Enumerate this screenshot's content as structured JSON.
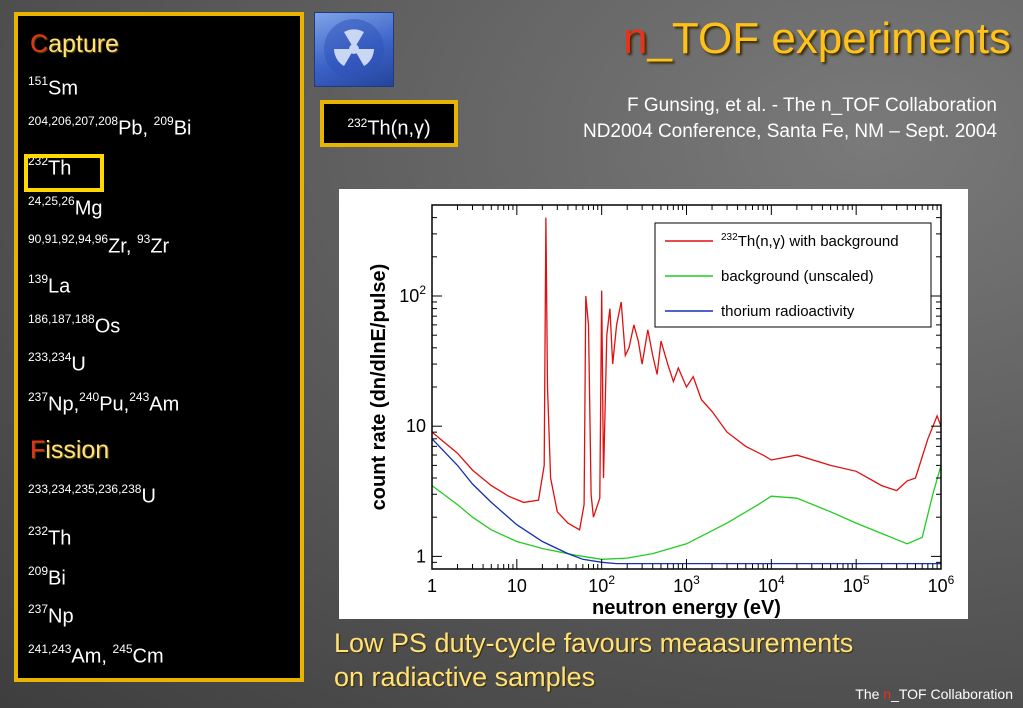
{
  "left_panel": {
    "capture_heading_first": "C",
    "capture_heading_rest": "apture",
    "capture_items": [
      {
        "sup": "151",
        "el": "Sm"
      },
      {
        "sup": "204,206,207,208",
        "el": "Pb, ",
        "sup2": "209",
        "el2": "Bi"
      },
      {
        "sup": "232",
        "el": "Th"
      },
      {
        "sup": "24,25,26",
        "el": "Mg"
      },
      {
        "sup": "90,91,92,94,96",
        "el": "Zr, ",
        "sup2": "93",
        "el2": "Zr"
      },
      {
        "sup": "139",
        "el": "La"
      },
      {
        "sup": "186,187,188",
        "el": "Os"
      },
      {
        "sup": "233,234",
        "el": "U"
      },
      {
        "sup": "237",
        "el": "Np,",
        "sup2": "240",
        "el2": "Pu,",
        "sup3": "243",
        "el3": "Am"
      }
    ],
    "fission_heading_first": "F",
    "fission_heading_rest": "ission",
    "fission_items": [
      {
        "sup": "233,234,235,236,238",
        "el": "U"
      },
      {
        "sup": "232",
        "el": "Th"
      },
      {
        "sup": "209",
        "el": "Bi"
      },
      {
        "sup": "237",
        "el": "Np"
      },
      {
        "sup": "241,243",
        "el": "Am, ",
        "sup2": "245",
        "el2": "Cm"
      }
    ]
  },
  "header": {
    "title_n": "n",
    "title_rest": "_TOF experiments",
    "credit_line1": "F Gunsing, et al. - The n_TOF Collaboration",
    "credit_line2": "ND2004 Conference, Santa Fe, NM – Sept. 2004"
  },
  "reaction": {
    "sup": "232",
    "text": "Th(n,γ)"
  },
  "footer": {
    "line1": "Low PS duty-cycle favours meaasurements",
    "line2": "on radiactive samples",
    "collab_pre": "The ",
    "collab_n": "n",
    "collab_post": "_TOF Collaboration"
  },
  "chart_data": {
    "type": "line",
    "xlabel": "neutron energy (eV)",
    "ylabel": "count rate (dn/dlnE/pulse)",
    "xscale": "log",
    "yscale": "log",
    "xlim": [
      1,
      1000000
    ],
    "ylim": [
      0.8,
      500
    ],
    "x_ticks": [
      {
        "v": 1,
        "b": "1",
        "e": ""
      },
      {
        "v": 10,
        "b": "10",
        "e": ""
      },
      {
        "v": 100,
        "b": "10",
        "e": "2"
      },
      {
        "v": 1000,
        "b": "10",
        "e": "3"
      },
      {
        "v": 10000,
        "b": "10",
        "e": "4"
      },
      {
        "v": 100000,
        "b": "10",
        "e": "5"
      },
      {
        "v": 1000000,
        "b": "10",
        "e": "6"
      }
    ],
    "y_ticks": [
      {
        "v": 1,
        "b": "1",
        "e": ""
      },
      {
        "v": 10,
        "b": "10",
        "e": ""
      },
      {
        "v": 100,
        "b": "10",
        "e": "2"
      }
    ],
    "legend_position": "top-right",
    "series": [
      {
        "name_sup": "232",
        "name": "Th(n,γ) with background",
        "color": "#e01010",
        "points": [
          [
            1,
            9
          ],
          [
            2,
            6.2
          ],
          [
            3,
            4.6
          ],
          [
            5,
            3.5
          ],
          [
            8,
            2.9
          ],
          [
            12,
            2.6
          ],
          [
            18,
            2.7
          ],
          [
            21,
            5
          ],
          [
            22,
            400
          ],
          [
            23,
            20
          ],
          [
            25,
            4
          ],
          [
            30,
            2.2
          ],
          [
            40,
            1.8
          ],
          [
            55,
            1.6
          ],
          [
            62,
            2.5
          ],
          [
            65,
            100
          ],
          [
            70,
            60
          ],
          [
            75,
            3
          ],
          [
            80,
            2
          ],
          [
            95,
            2.8
          ],
          [
            100,
            110
          ],
          [
            105,
            4
          ],
          [
            115,
            50
          ],
          [
            125,
            80
          ],
          [
            135,
            30
          ],
          [
            150,
            60
          ],
          [
            170,
            90
          ],
          [
            190,
            35
          ],
          [
            210,
            40
          ],
          [
            240,
            60
          ],
          [
            270,
            45
          ],
          [
            300,
            30
          ],
          [
            350,
            55
          ],
          [
            400,
            35
          ],
          [
            450,
            25
          ],
          [
            500,
            45
          ],
          [
            600,
            30
          ],
          [
            700,
            22
          ],
          [
            800,
            28
          ],
          [
            1000,
            20
          ],
          [
            1200,
            24
          ],
          [
            1500,
            16
          ],
          [
            2000,
            13
          ],
          [
            3000,
            9
          ],
          [
            5000,
            7
          ],
          [
            8000,
            6
          ],
          [
            10000,
            5.5
          ],
          [
            20000,
            6
          ],
          [
            50000,
            5
          ],
          [
            100000,
            4.5
          ],
          [
            200000,
            3.5
          ],
          [
            300000,
            3.2
          ],
          [
            400000,
            3.8
          ],
          [
            500000,
            4
          ],
          [
            700000,
            8
          ],
          [
            900000,
            12
          ],
          [
            1000000,
            10
          ]
        ]
      },
      {
        "name": "background (unscaled)",
        "color": "#22cc22",
        "points": [
          [
            1,
            3.5
          ],
          [
            2,
            2.5
          ],
          [
            3,
            2
          ],
          [
            5,
            1.6
          ],
          [
            10,
            1.3
          ],
          [
            20,
            1.15
          ],
          [
            50,
            1.02
          ],
          [
            100,
            0.95
          ],
          [
            200,
            0.97
          ],
          [
            400,
            1.05
          ],
          [
            1000,
            1.25
          ],
          [
            3000,
            1.8
          ],
          [
            7000,
            2.5
          ],
          [
            10000,
            2.9
          ],
          [
            20000,
            2.8
          ],
          [
            50000,
            2.2
          ],
          [
            100000,
            1.8
          ],
          [
            200000,
            1.5
          ],
          [
            400000,
            1.25
          ],
          [
            600000,
            1.4
          ],
          [
            800000,
            3
          ],
          [
            1000000,
            5
          ]
        ]
      },
      {
        "name": "thorium radioactivity",
        "color": "#1530b0",
        "points": [
          [
            1,
            8
          ],
          [
            2,
            5
          ],
          [
            3,
            3.6
          ],
          [
            5,
            2.6
          ],
          [
            10,
            1.75
          ],
          [
            20,
            1.3
          ],
          [
            40,
            1.05
          ],
          [
            60,
            0.95
          ],
          [
            100,
            0.9
          ],
          [
            150,
            0.88
          ],
          [
            1000000,
            0.88
          ]
        ]
      }
    ]
  }
}
